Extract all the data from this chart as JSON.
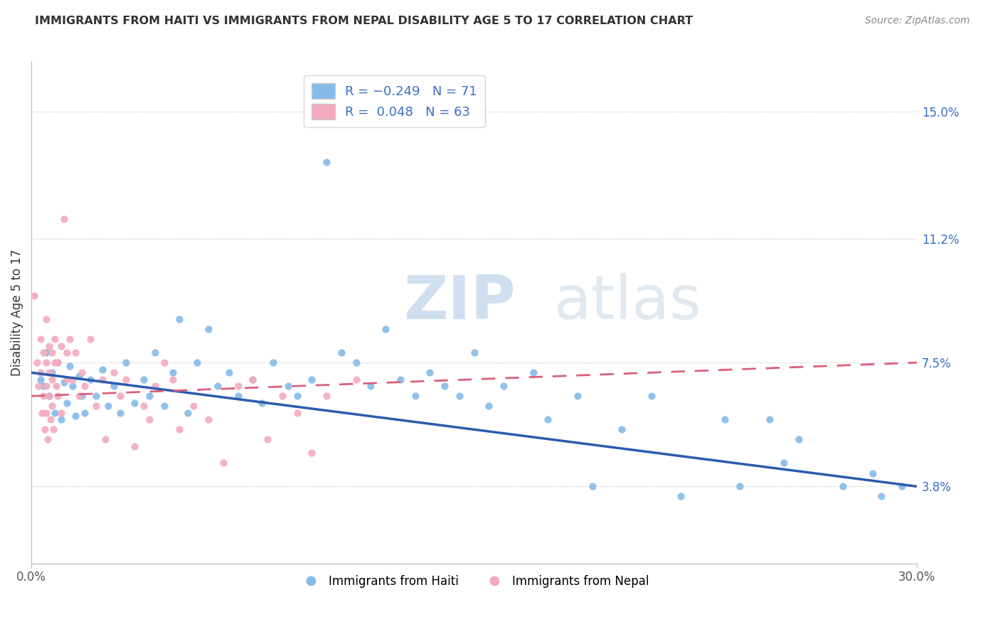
{
  "title": "IMMIGRANTS FROM HAITI VS IMMIGRANTS FROM NEPAL DISABILITY AGE 5 TO 17 CORRELATION CHART",
  "source": "Source: ZipAtlas.com",
  "ylabel": "Disability Age 5 to 17",
  "xlim": [
    0.0,
    30.0
  ],
  "ylim": [
    1.5,
    16.5
  ],
  "yticks": [
    3.8,
    7.5,
    11.2,
    15.0
  ],
  "haiti_color": "#85BBE8",
  "nepal_color": "#F4AABF",
  "haiti_line_color": "#2B5BAD",
  "nepal_line_color": "#D9607A",
  "haiti_R": -0.249,
  "haiti_N": 71,
  "nepal_R": 0.048,
  "nepal_N": 63,
  "haiti_scatter": [
    [
      0.3,
      7.0
    ],
    [
      0.4,
      6.8
    ],
    [
      0.5,
      7.8
    ],
    [
      0.6,
      6.5
    ],
    [
      0.7,
      7.2
    ],
    [
      0.8,
      6.0
    ],
    [
      0.9,
      7.5
    ],
    [
      1.0,
      5.8
    ],
    [
      1.1,
      6.9
    ],
    [
      1.2,
      6.3
    ],
    [
      1.3,
      7.4
    ],
    [
      1.4,
      6.8
    ],
    [
      1.5,
      5.9
    ],
    [
      1.6,
      7.1
    ],
    [
      1.7,
      6.5
    ],
    [
      1.8,
      6.0
    ],
    [
      2.0,
      7.0
    ],
    [
      2.2,
      6.5
    ],
    [
      2.4,
      7.3
    ],
    [
      2.6,
      6.2
    ],
    [
      2.8,
      6.8
    ],
    [
      3.0,
      6.0
    ],
    [
      3.2,
      7.5
    ],
    [
      3.5,
      6.3
    ],
    [
      3.8,
      7.0
    ],
    [
      4.0,
      6.5
    ],
    [
      4.2,
      7.8
    ],
    [
      4.5,
      6.2
    ],
    [
      4.8,
      7.2
    ],
    [
      5.0,
      8.8
    ],
    [
      5.3,
      6.0
    ],
    [
      5.6,
      7.5
    ],
    [
      6.0,
      8.5
    ],
    [
      6.3,
      6.8
    ],
    [
      6.7,
      7.2
    ],
    [
      7.0,
      6.5
    ],
    [
      7.5,
      7.0
    ],
    [
      7.8,
      6.3
    ],
    [
      8.2,
      7.5
    ],
    [
      8.7,
      6.8
    ],
    [
      9.0,
      6.5
    ],
    [
      9.5,
      7.0
    ],
    [
      10.0,
      13.5
    ],
    [
      10.5,
      7.8
    ],
    [
      11.0,
      7.5
    ],
    [
      11.5,
      6.8
    ],
    [
      12.0,
      8.5
    ],
    [
      12.5,
      7.0
    ],
    [
      13.0,
      6.5
    ],
    [
      13.5,
      7.2
    ],
    [
      14.0,
      6.8
    ],
    [
      14.5,
      6.5
    ],
    [
      15.0,
      7.8
    ],
    [
      15.5,
      6.2
    ],
    [
      16.0,
      6.8
    ],
    [
      17.0,
      7.2
    ],
    [
      17.5,
      5.8
    ],
    [
      18.5,
      6.5
    ],
    [
      19.0,
      3.8
    ],
    [
      20.0,
      5.5
    ],
    [
      21.0,
      6.5
    ],
    [
      22.0,
      3.5
    ],
    [
      23.5,
      5.8
    ],
    [
      24.0,
      3.8
    ],
    [
      25.0,
      5.8
    ],
    [
      25.5,
      4.5
    ],
    [
      26.0,
      5.2
    ],
    [
      27.5,
      3.8
    ],
    [
      28.5,
      4.2
    ],
    [
      28.8,
      3.5
    ],
    [
      29.5,
      3.8
    ]
  ],
  "nepal_scatter": [
    [
      0.1,
      9.5
    ],
    [
      0.2,
      7.5
    ],
    [
      0.25,
      6.8
    ],
    [
      0.3,
      8.2
    ],
    [
      0.3,
      7.2
    ],
    [
      0.35,
      6.0
    ],
    [
      0.4,
      7.8
    ],
    [
      0.4,
      6.5
    ],
    [
      0.45,
      5.5
    ],
    [
      0.5,
      8.8
    ],
    [
      0.5,
      7.5
    ],
    [
      0.5,
      6.8
    ],
    [
      0.5,
      6.0
    ],
    [
      0.55,
      5.2
    ],
    [
      0.6,
      8.0
    ],
    [
      0.6,
      7.2
    ],
    [
      0.6,
      6.5
    ],
    [
      0.65,
      5.8
    ],
    [
      0.7,
      7.8
    ],
    [
      0.7,
      7.0
    ],
    [
      0.7,
      6.2
    ],
    [
      0.75,
      5.5
    ],
    [
      0.8,
      8.2
    ],
    [
      0.8,
      7.5
    ],
    [
      0.85,
      6.8
    ],
    [
      0.9,
      7.5
    ],
    [
      0.9,
      6.5
    ],
    [
      1.0,
      8.0
    ],
    [
      1.0,
      6.0
    ],
    [
      1.1,
      11.8
    ],
    [
      1.2,
      7.8
    ],
    [
      1.2,
      7.0
    ],
    [
      1.3,
      8.2
    ],
    [
      1.4,
      7.0
    ],
    [
      1.5,
      7.8
    ],
    [
      1.6,
      6.5
    ],
    [
      1.7,
      7.2
    ],
    [
      1.8,
      6.8
    ],
    [
      2.0,
      8.2
    ],
    [
      2.2,
      6.2
    ],
    [
      2.4,
      7.0
    ],
    [
      2.5,
      5.2
    ],
    [
      2.8,
      7.2
    ],
    [
      3.0,
      6.5
    ],
    [
      3.2,
      7.0
    ],
    [
      3.5,
      5.0
    ],
    [
      3.8,
      6.2
    ],
    [
      4.0,
      5.8
    ],
    [
      4.2,
      6.8
    ],
    [
      4.5,
      7.5
    ],
    [
      4.8,
      7.0
    ],
    [
      5.0,
      5.5
    ],
    [
      5.5,
      6.2
    ],
    [
      6.0,
      5.8
    ],
    [
      6.5,
      4.5
    ],
    [
      7.0,
      6.8
    ],
    [
      7.5,
      7.0
    ],
    [
      8.0,
      5.2
    ],
    [
      8.5,
      6.5
    ],
    [
      9.0,
      6.0
    ],
    [
      9.5,
      4.8
    ],
    [
      10.0,
      6.5
    ],
    [
      11.0,
      7.0
    ]
  ],
  "haiti_line": [
    0.0,
    30.0,
    7.2,
    3.8
  ],
  "nepal_line": [
    0.0,
    30.0,
    6.5,
    7.5
  ]
}
